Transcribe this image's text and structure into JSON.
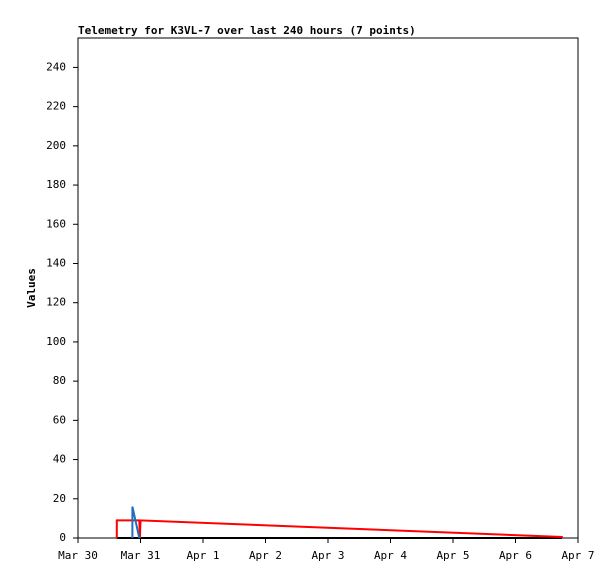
{
  "chart_data": {
    "type": "line",
    "title": "Telemetry for K3VL-7 over last 240 hours (7 points)",
    "y_label": "Values",
    "xlim": [
      0,
      8
    ],
    "xticks": [
      {
        "value": 0,
        "label": "Mar 30"
      },
      {
        "value": 1,
        "label": "Mar 31"
      },
      {
        "value": 2,
        "label": "Apr 1"
      },
      {
        "value": 3,
        "label": "Apr 2"
      },
      {
        "value": 4,
        "label": "Apr 3"
      },
      {
        "value": 5,
        "label": "Apr 4"
      },
      {
        "value": 6,
        "label": "Apr 5"
      },
      {
        "value": 7,
        "label": "Apr 6"
      },
      {
        "value": 8,
        "label": "Apr 7"
      }
    ],
    "ylim": [
      0,
      255
    ],
    "yticks": [
      0,
      20,
      40,
      60,
      80,
      100,
      120,
      140,
      160,
      180,
      200,
      220,
      240
    ],
    "series": [
      {
        "color": "#000000",
        "x": [
          0.62,
          7.74
        ],
        "values": [
          0,
          0
        ]
      },
      {
        "color": "#ff0000",
        "x": [
          0.62,
          0.62,
          0.98,
          0.99,
          1.0,
          7.74,
          7.74
        ],
        "values": [
          0,
          9,
          9,
          0,
          9,
          0.5,
          0
        ]
      },
      {
        "color": "#1f6fbf",
        "x": [
          0.87,
          0.87,
          0.98
        ],
        "values": [
          0,
          16,
          0
        ]
      }
    ]
  }
}
